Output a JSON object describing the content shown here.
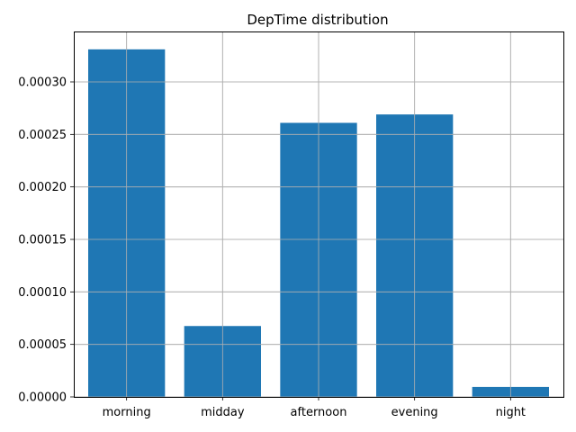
{
  "chart_data": {
    "type": "bar",
    "title": "DepTime distribution",
    "xlabel": "",
    "ylabel": "",
    "categories": [
      "morning",
      "midday",
      "afternoon",
      "evening",
      "night"
    ],
    "values": [
      0.000331,
      6.75e-05,
      0.000261,
      0.000269,
      9.5e-06
    ],
    "ylim": [
      0,
      0.000348
    ],
    "yticks": [
      0,
      5e-05,
      0.0001,
      0.00015,
      0.0002,
      0.00025,
      0.0003
    ],
    "ytick_labels": [
      "0.00000",
      "0.00005",
      "0.00010",
      "0.00015",
      "0.00020",
      "0.00025",
      "0.00030"
    ],
    "grid": true,
    "bar_color": "#1f77b4",
    "grid_color": "#b0b0b0"
  }
}
